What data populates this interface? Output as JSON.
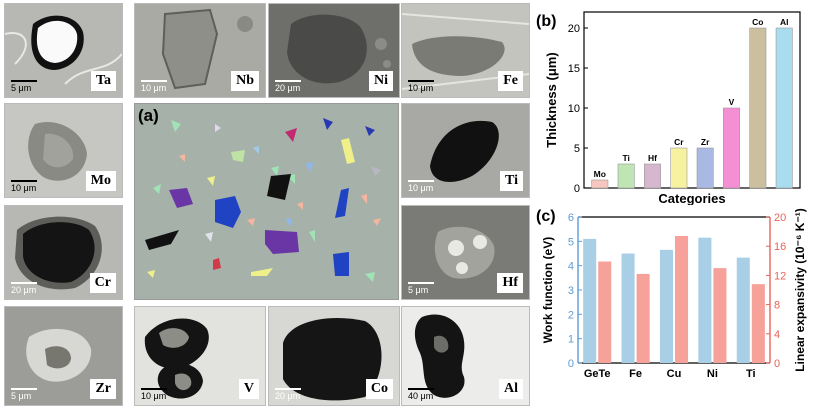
{
  "tiles": [
    {
      "key": "ta",
      "label": "Ta",
      "scale": "5 μm"
    },
    {
      "key": "nb",
      "label": "Nb",
      "scale": "10 μm"
    },
    {
      "key": "ni",
      "label": "Ni",
      "scale": "20 μm"
    },
    {
      "key": "fe",
      "label": "Fe",
      "scale": "10 μm"
    },
    {
      "key": "mo",
      "label": "Mo",
      "scale": "10 μm"
    },
    {
      "key": "ti",
      "label": "Ti",
      "scale": "10 μm"
    },
    {
      "key": "cr",
      "label": "Cr",
      "scale": "20 μm"
    },
    {
      "key": "hf",
      "label": "Hf",
      "scale": "5 μm"
    },
    {
      "key": "zr",
      "label": "Zr",
      "scale": "5 μm"
    },
    {
      "key": "v",
      "label": "V",
      "scale": "10 μm"
    },
    {
      "key": "co",
      "label": "Co",
      "scale": "20 μm"
    },
    {
      "key": "al",
      "label": "Al",
      "scale": "40 μm"
    }
  ],
  "panel_a": {
    "label": "(a)"
  },
  "chart_data": [
    {
      "type": "bar",
      "panel_label": "(b)",
      "categories": [
        "Mo",
        "Ti",
        "Hf",
        "Cr",
        "Zr",
        "V",
        "Co",
        "Al"
      ],
      "values": [
        1,
        3,
        3,
        5,
        5,
        10,
        20,
        20
      ],
      "colors": [
        "#f7c6c0",
        "#bfe5b5",
        "#d7b7cf",
        "#f7f2a0",
        "#aab8e4",
        "#f48fd4",
        "#cbbf9d",
        "#a9dcef"
      ],
      "xlabel": "Categories",
      "ylabel": "Thickness (μm)",
      "ylim": [
        0,
        22
      ],
      "yticks": [
        0,
        5,
        10,
        15,
        20
      ]
    },
    {
      "type": "bar",
      "panel_label": "(c)",
      "categories": [
        "GeTe",
        "Fe",
        "Cu",
        "Ni",
        "Ti"
      ],
      "series": [
        {
          "values": [
            5.1,
            4.5,
            4.65,
            5.15,
            4.33
          ],
          "color": "#a8cfe6",
          "axis": "left"
        },
        {
          "values": [
            13.9,
            12.2,
            17.4,
            13.0,
            10.8
          ],
          "color": "#f6a199",
          "axis": "right"
        }
      ],
      "ylabel_left": "Work function (eV)",
      "ylabel_right": "Linear expansivity (10⁻⁶ K⁻¹)",
      "ylim_left": [
        0,
        6
      ],
      "ylim_right": [
        0,
        20
      ],
      "yticks_left": [
        0,
        1,
        2,
        3,
        4,
        5,
        6
      ],
      "yticks_right": [
        0,
        4,
        8,
        12,
        16,
        20
      ],
      "left_axis_color": "#5b9bd5",
      "right_axis_color": "#e8625a"
    }
  ]
}
